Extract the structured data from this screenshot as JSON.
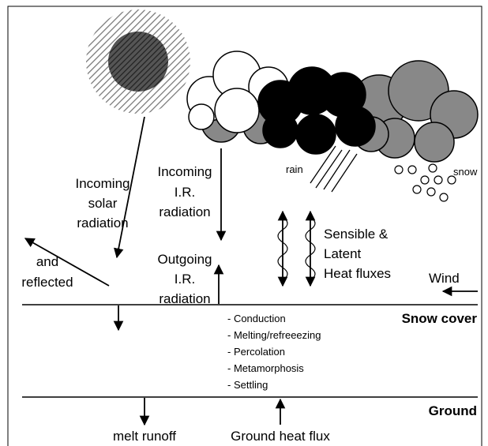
{
  "solar": [
    "Incoming",
    "solar",
    "radiation"
  ],
  "reflected": [
    "and",
    "reflected"
  ],
  "incoming_ir": [
    "Incoming",
    "I.R.",
    "radiation"
  ],
  "outgoing_ir": [
    "Outgoing",
    "I.R.",
    "radiation"
  ],
  "rain": "rain",
  "snow": "snow",
  "heat_fluxes": [
    "Sensible &",
    "Latent",
    "Heat fluxes"
  ],
  "wind": "Wind",
  "snow_cover": "Snow cover",
  "processes": [
    "- Conduction",
    "- Melting/refreeezing",
    "- Percolation",
    "- Metamorphosis",
    "- Settling"
  ],
  "ground": "Ground",
  "melt_runoff": "melt runoff",
  "ground_heat_flux": "Ground heat flux"
}
